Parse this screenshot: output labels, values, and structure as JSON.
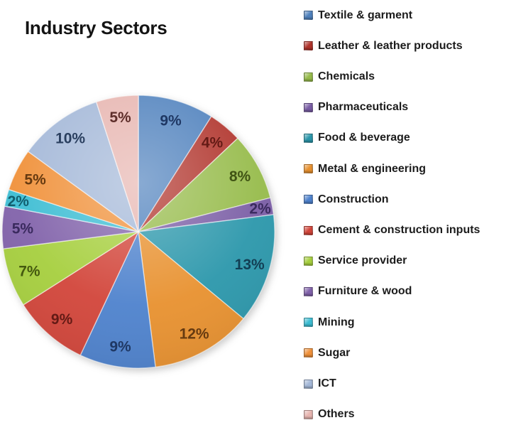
{
  "chart_data": {
    "type": "pie",
    "title": "Industry Sectors",
    "unit": "%",
    "legend_position": "right",
    "start_angle_deg": 0,
    "direction": "clockwise",
    "value_label_format": "{value}%",
    "slices": [
      {
        "label": "Textile & garment",
        "value": 9,
        "color": "#4f81bd",
        "label_color": "#1f3864"
      },
      {
        "label": "Leather & leather products",
        "value": 4,
        "color": "#b0332b",
        "label_color": "#631a15"
      },
      {
        "label": "Chemicals",
        "value": 8,
        "color": "#96bb4a",
        "label_color": "#405414"
      },
      {
        "label": "Pharmaceuticals",
        "value": 2,
        "color": "#7a5da5",
        "label_color": "#3a2a5e"
      },
      {
        "label": "Food & beverage",
        "value": 13,
        "color": "#2b97ab",
        "label_color": "#123f54"
      },
      {
        "label": "Metal & engineering",
        "value": 12,
        "color": "#e8912f",
        "label_color": "#663a10"
      },
      {
        "label": "Construction",
        "value": 9,
        "color": "#4e82cd",
        "label_color": "#1f3864"
      },
      {
        "label": "Cement & construction inputs",
        "value": 9,
        "color": "#d2453a",
        "label_color": "#631a15"
      },
      {
        "label": "Service provider",
        "value": 7,
        "color": "#a6cf3e",
        "label_color": "#44590f"
      },
      {
        "label": "Furniture & wood",
        "value": 5,
        "color": "#8162aa",
        "label_color": "#3a2a5e"
      },
      {
        "label": "Mining",
        "value": 2,
        "color": "#3cbdd3",
        "label_color": "#115e6e"
      },
      {
        "label": "Sugar",
        "value": 5,
        "color": "#f0913a",
        "label_color": "#663a10"
      },
      {
        "label": "ICT",
        "value": 10,
        "color": "#a4b8d8",
        "label_color": "#2a3f5f"
      },
      {
        "label": "Others",
        "value": 5,
        "color": "#e7b5b0",
        "label_color": "#5e2e2a"
      }
    ]
  }
}
